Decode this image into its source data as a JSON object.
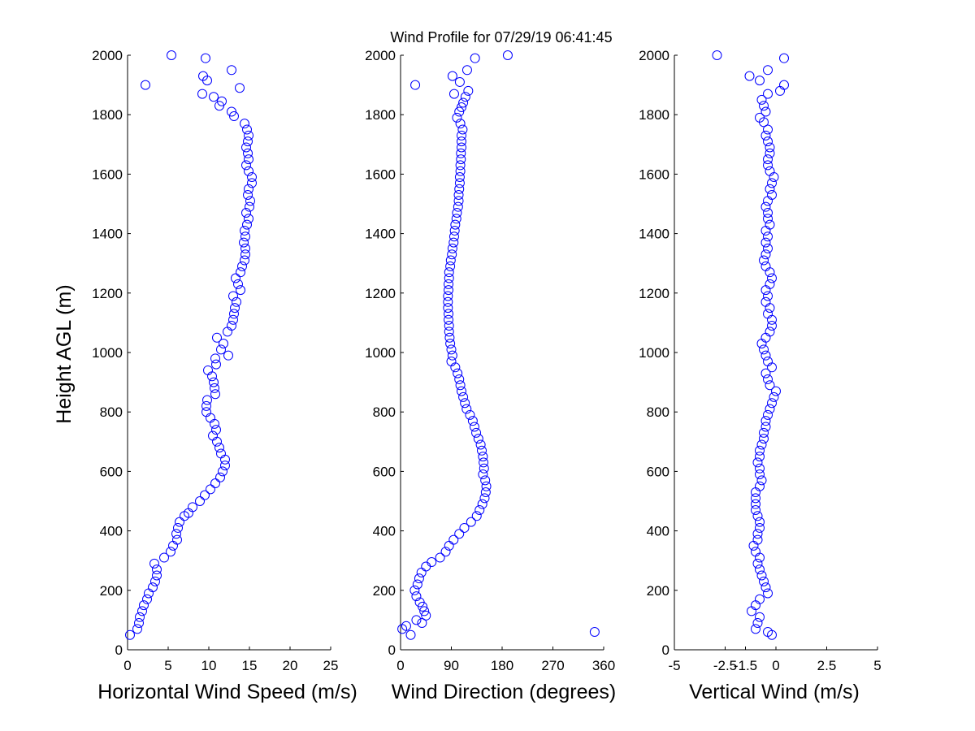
{
  "title": "Wind Profile for  07/29/19 06:41:45",
  "chart_data": [
    {
      "type": "scatter",
      "xlabel": "Horizontal Wind Speed (m/s)",
      "ylabel": "Height AGL (m)",
      "xlim": [
        0,
        25
      ],
      "ylim": [
        0,
        2000
      ],
      "xticks": [
        "0",
        "5",
        "10",
        "15",
        "20",
        "25"
      ],
      "yticks": [
        "0",
        "200",
        "400",
        "600",
        "800",
        "1000",
        "1200",
        "1400",
        "1600",
        "1800",
        "2000"
      ],
      "grid": false,
      "marker_color": "#0000ff",
      "points": [
        [
          0.3,
          50
        ],
        [
          1.2,
          70
        ],
        [
          1.4,
          90
        ],
        [
          1.5,
          110
        ],
        [
          1.8,
          130
        ],
        [
          2.0,
          150
        ],
        [
          2.4,
          170
        ],
        [
          2.6,
          190
        ],
        [
          3.1,
          210
        ],
        [
          3.4,
          230
        ],
        [
          3.6,
          250
        ],
        [
          3.6,
          270
        ],
        [
          3.3,
          290
        ],
        [
          4.5,
          310
        ],
        [
          5.3,
          330
        ],
        [
          5.6,
          350
        ],
        [
          6.1,
          370
        ],
        [
          6.0,
          390
        ],
        [
          6.2,
          410
        ],
        [
          6.4,
          430
        ],
        [
          7.0,
          450
        ],
        [
          7.5,
          460
        ],
        [
          8.0,
          480
        ],
        [
          8.9,
          500
        ],
        [
          9.5,
          520
        ],
        [
          10.2,
          540
        ],
        [
          10.8,
          560
        ],
        [
          11.4,
          580
        ],
        [
          11.7,
          600
        ],
        [
          12.0,
          620
        ],
        [
          12.0,
          640
        ],
        [
          11.5,
          660
        ],
        [
          11.3,
          680
        ],
        [
          11.0,
          700
        ],
        [
          10.5,
          720
        ],
        [
          10.9,
          740
        ],
        [
          10.7,
          760
        ],
        [
          10.2,
          780
        ],
        [
          9.7,
          800
        ],
        [
          9.7,
          820
        ],
        [
          9.8,
          840
        ],
        [
          10.8,
          860
        ],
        [
          10.7,
          880
        ],
        [
          10.6,
          900
        ],
        [
          10.4,
          920
        ],
        [
          9.9,
          940
        ],
        [
          10.9,
          960
        ],
        [
          10.8,
          980
        ],
        [
          12.4,
          990
        ],
        [
          11.5,
          1010
        ],
        [
          11.8,
          1030
        ],
        [
          11.0,
          1050
        ],
        [
          12.3,
          1070
        ],
        [
          12.8,
          1090
        ],
        [
          13.0,
          1110
        ],
        [
          13.1,
          1130
        ],
        [
          13.2,
          1150
        ],
        [
          13.4,
          1170
        ],
        [
          13.0,
          1190
        ],
        [
          13.9,
          1210
        ],
        [
          13.6,
          1230
        ],
        [
          13.3,
          1250
        ],
        [
          13.9,
          1270
        ],
        [
          14.1,
          1290
        ],
        [
          14.4,
          1310
        ],
        [
          14.5,
          1330
        ],
        [
          14.5,
          1350
        ],
        [
          14.3,
          1370
        ],
        [
          14.5,
          1390
        ],
        [
          14.4,
          1410
        ],
        [
          14.7,
          1430
        ],
        [
          14.9,
          1450
        ],
        [
          14.6,
          1470
        ],
        [
          15.0,
          1490
        ],
        [
          15.1,
          1510
        ],
        [
          14.8,
          1530
        ],
        [
          14.9,
          1550
        ],
        [
          15.3,
          1570
        ],
        [
          15.3,
          1590
        ],
        [
          14.9,
          1610
        ],
        [
          14.6,
          1630
        ],
        [
          14.9,
          1650
        ],
        [
          14.8,
          1670
        ],
        [
          14.6,
          1690
        ],
        [
          14.8,
          1710
        ],
        [
          14.9,
          1730
        ],
        [
          14.7,
          1750
        ],
        [
          14.4,
          1770
        ],
        [
          13.1,
          1795
        ],
        [
          12.8,
          1810
        ],
        [
          11.3,
          1830
        ],
        [
          11.6,
          1845
        ],
        [
          10.6,
          1860
        ],
        [
          9.2,
          1870
        ],
        [
          13.8,
          1890
        ],
        [
          2.2,
          1900
        ],
        [
          9.8,
          1915
        ],
        [
          9.3,
          1930
        ],
        [
          12.8,
          1950
        ],
        [
          9.6,
          1990
        ],
        [
          5.4,
          2000
        ]
      ]
    },
    {
      "type": "scatter",
      "xlabel": "Wind Direction (degrees)",
      "ylabel": "",
      "xlim": [
        0,
        360
      ],
      "ylim": [
        0,
        2000
      ],
      "xticks": [
        "0",
        "90",
        "180",
        "270",
        "360"
      ],
      "yticks": [
        "0",
        "200",
        "400",
        "600",
        "800",
        "1000",
        "1200",
        "1400",
        "1600",
        "1800",
        "2000"
      ],
      "grid": false,
      "marker_color": "#0000ff",
      "points": [
        [
          18,
          50
        ],
        [
          344,
          60
        ],
        [
          3,
          70
        ],
        [
          10,
          80
        ],
        [
          38,
          90
        ],
        [
          28,
          100
        ],
        [
          45,
          115
        ],
        [
          42,
          130
        ],
        [
          39,
          145
        ],
        [
          34,
          160
        ],
        [
          28,
          180
        ],
        [
          25,
          200
        ],
        [
          30,
          220
        ],
        [
          33,
          240
        ],
        [
          37,
          260
        ],
        [
          45,
          280
        ],
        [
          55,
          295
        ],
        [
          70,
          310
        ],
        [
          80,
          330
        ],
        [
          86,
          350
        ],
        [
          94,
          370
        ],
        [
          104,
          390
        ],
        [
          113,
          410
        ],
        [
          125,
          430
        ],
        [
          135,
          450
        ],
        [
          140,
          470
        ],
        [
          145,
          490
        ],
        [
          149,
          510
        ],
        [
          151,
          530
        ],
        [
          152,
          550
        ],
        [
          150,
          570
        ],
        [
          146,
          590
        ],
        [
          148,
          610
        ],
        [
          147,
          630
        ],
        [
          146,
          650
        ],
        [
          144,
          670
        ],
        [
          142,
          690
        ],
        [
          138,
          710
        ],
        [
          134,
          730
        ],
        [
          131,
          750
        ],
        [
          128,
          770
        ],
        [
          123,
          790
        ],
        [
          117,
          810
        ],
        [
          114,
          830
        ],
        [
          111,
          850
        ],
        [
          108,
          870
        ],
        [
          106,
          890
        ],
        [
          104,
          910
        ],
        [
          101,
          930
        ],
        [
          97,
          950
        ],
        [
          90,
          970
        ],
        [
          92,
          990
        ],
        [
          90,
          1010
        ],
        [
          88,
          1030
        ],
        [
          87,
          1050
        ],
        [
          86,
          1070
        ],
        [
          86,
          1090
        ],
        [
          85,
          1110
        ],
        [
          85,
          1130
        ],
        [
          84,
          1150
        ],
        [
          84,
          1170
        ],
        [
          84,
          1190
        ],
        [
          85,
          1210
        ],
        [
          85,
          1230
        ],
        [
          86,
          1250
        ],
        [
          86,
          1270
        ],
        [
          88,
          1290
        ],
        [
          89,
          1310
        ],
        [
          91,
          1330
        ],
        [
          92,
          1350
        ],
        [
          94,
          1370
        ],
        [
          95,
          1390
        ],
        [
          96,
          1410
        ],
        [
          97,
          1430
        ],
        [
          99,
          1450
        ],
        [
          100,
          1470
        ],
        [
          102,
          1490
        ],
        [
          103,
          1510
        ],
        [
          103,
          1530
        ],
        [
          104,
          1550
        ],
        [
          105,
          1570
        ],
        [
          105,
          1590
        ],
        [
          106,
          1610
        ],
        [
          106,
          1630
        ],
        [
          107,
          1650
        ],
        [
          107,
          1670
        ],
        [
          108,
          1690
        ],
        [
          108,
          1710
        ],
        [
          108,
          1730
        ],
        [
          110,
          1750
        ],
        [
          106,
          1770
        ],
        [
          100,
          1790
        ],
        [
          104,
          1810
        ],
        [
          108,
          1825
        ],
        [
          111,
          1840
        ],
        [
          115,
          1860
        ],
        [
          95,
          1870
        ],
        [
          120,
          1880
        ],
        [
          26,
          1900
        ],
        [
          105,
          1910
        ],
        [
          92,
          1930
        ],
        [
          118,
          1950
        ],
        [
          132,
          1990
        ],
        [
          190,
          2000
        ]
      ]
    },
    {
      "type": "scatter",
      "xlabel": "Vertical Wind (m/s)",
      "ylabel": "",
      "xlim": [
        -5,
        5
      ],
      "ylim": [
        0,
        2000
      ],
      "xticks": [
        "-5",
        "-2.5",
        "-1.5",
        "0",
        "2.5",
        "5"
      ],
      "yticks": [
        "0",
        "200",
        "400",
        "600",
        "800",
        "1000",
        "1200",
        "1400",
        "1600",
        "1800",
        "2000"
      ],
      "grid": false,
      "marker_color": "#0000ff",
      "points": [
        [
          -0.2,
          50
        ],
        [
          -0.4,
          60
        ],
        [
          -1.0,
          70
        ],
        [
          -0.9,
          90
        ],
        [
          -0.8,
          110
        ],
        [
          -1.2,
          130
        ],
        [
          -1.0,
          150
        ],
        [
          -0.8,
          170
        ],
        [
          -0.4,
          190
        ],
        [
          -0.5,
          210
        ],
        [
          -0.6,
          230
        ],
        [
          -0.7,
          250
        ],
        [
          -0.8,
          270
        ],
        [
          -0.9,
          290
        ],
        [
          -0.8,
          310
        ],
        [
          -1.0,
          330
        ],
        [
          -1.1,
          350
        ],
        [
          -0.9,
          370
        ],
        [
          -0.9,
          390
        ],
        [
          -0.8,
          410
        ],
        [
          -0.8,
          430
        ],
        [
          -0.9,
          450
        ],
        [
          -1.0,
          470
        ],
        [
          -1.0,
          490
        ],
        [
          -1.0,
          510
        ],
        [
          -1.0,
          530
        ],
        [
          -0.8,
          550
        ],
        [
          -0.7,
          570
        ],
        [
          -0.8,
          590
        ],
        [
          -0.8,
          610
        ],
        [
          -0.9,
          630
        ],
        [
          -0.8,
          650
        ],
        [
          -0.8,
          670
        ],
        [
          -0.7,
          690
        ],
        [
          -0.6,
          710
        ],
        [
          -0.6,
          730
        ],
        [
          -0.5,
          750
        ],
        [
          -0.5,
          770
        ],
        [
          -0.4,
          790
        ],
        [
          -0.3,
          810
        ],
        [
          -0.2,
          830
        ],
        [
          -0.1,
          850
        ],
        [
          0.0,
          870
        ],
        [
          -0.3,
          890
        ],
        [
          -0.4,
          910
        ],
        [
          -0.5,
          930
        ],
        [
          -0.2,
          950
        ],
        [
          -0.4,
          970
        ],
        [
          -0.5,
          990
        ],
        [
          -0.6,
          1010
        ],
        [
          -0.7,
          1030
        ],
        [
          -0.5,
          1050
        ],
        [
          -0.3,
          1070
        ],
        [
          -0.2,
          1090
        ],
        [
          -0.2,
          1110
        ],
        [
          -0.4,
          1130
        ],
        [
          -0.3,
          1150
        ],
        [
          -0.5,
          1170
        ],
        [
          -0.4,
          1190
        ],
        [
          -0.5,
          1210
        ],
        [
          -0.3,
          1230
        ],
        [
          -0.2,
          1250
        ],
        [
          -0.3,
          1270
        ],
        [
          -0.5,
          1290
        ],
        [
          -0.6,
          1310
        ],
        [
          -0.5,
          1330
        ],
        [
          -0.4,
          1350
        ],
        [
          -0.5,
          1370
        ],
        [
          -0.4,
          1390
        ],
        [
          -0.5,
          1410
        ],
        [
          -0.3,
          1430
        ],
        [
          -0.4,
          1450
        ],
        [
          -0.4,
          1470
        ],
        [
          -0.5,
          1490
        ],
        [
          -0.4,
          1510
        ],
        [
          -0.2,
          1530
        ],
        [
          -0.3,
          1550
        ],
        [
          -0.2,
          1570
        ],
        [
          -0.1,
          1590
        ],
        [
          -0.3,
          1610
        ],
        [
          -0.4,
          1630
        ],
        [
          -0.4,
          1650
        ],
        [
          -0.3,
          1670
        ],
        [
          -0.3,
          1690
        ],
        [
          -0.4,
          1710
        ],
        [
          -0.5,
          1730
        ],
        [
          -0.4,
          1750
        ],
        [
          -0.6,
          1775
        ],
        [
          -0.8,
          1790
        ],
        [
          -0.5,
          1810
        ],
        [
          -0.6,
          1830
        ],
        [
          -0.7,
          1850
        ],
        [
          -0.4,
          1870
        ],
        [
          0.2,
          1880
        ],
        [
          0.4,
          1900
        ],
        [
          -0.8,
          1915
        ],
        [
          -1.3,
          1930
        ],
        [
          -0.4,
          1950
        ],
        [
          0.4,
          1990
        ],
        [
          -2.9,
          2000
        ]
      ]
    }
  ]
}
